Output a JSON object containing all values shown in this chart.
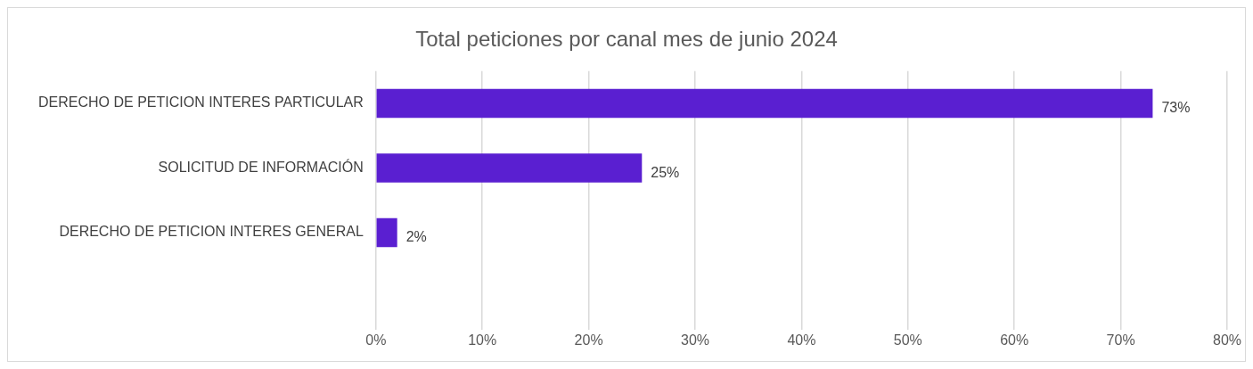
{
  "chart_data": {
    "type": "bar",
    "orientation": "horizontal",
    "title": "Total peticiones por canal mes de junio 2024",
    "categories": [
      "DERECHO DE PETICION INTERES PARTICULAR",
      "SOLICITUD DE INFORMACIÓN",
      "DERECHO DE PETICION INTERES GENERAL",
      null
    ],
    "values": [
      73,
      25,
      2,
      null
    ],
    "color": "#5a1fd1",
    "value_labels": [
      "73%",
      "25%",
      "2%",
      null
    ],
    "xlim": [
      0,
      80
    ],
    "xticks": [
      {
        "value": 0,
        "label": "0%"
      },
      {
        "value": 10,
        "label": "10%"
      },
      {
        "value": 20,
        "label": "20%"
      },
      {
        "value": 30,
        "label": "30%"
      },
      {
        "value": 40,
        "label": "40%"
      },
      {
        "value": 50,
        "label": "50%"
      },
      {
        "value": 60,
        "label": "60%"
      },
      {
        "value": 70,
        "label": "70%"
      },
      {
        "value": 80,
        "label": "80%"
      }
    ],
    "grid": "x",
    "legend": false
  }
}
